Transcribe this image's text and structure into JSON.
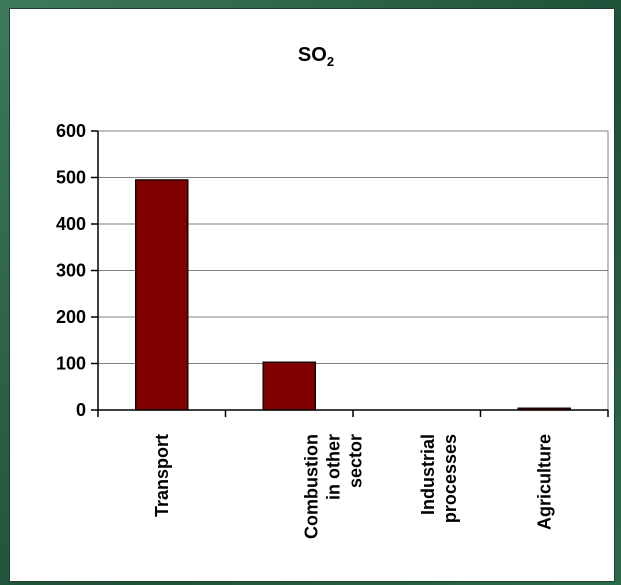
{
  "chart_data": {
    "type": "bar",
    "title": "SO",
    "title_subscript": "2",
    "categories": [
      [
        "Transport"
      ],
      [
        "Combustion",
        "in other",
        "sector"
      ],
      [
        "Industrial",
        "processes"
      ],
      [
        "Agriculture"
      ]
    ],
    "values": [
      495,
      103,
      0,
      4
    ],
    "ylim": [
      0,
      600
    ],
    "yticks": [
      0,
      100,
      200,
      300,
      400,
      500,
      600
    ],
    "grid": true,
    "legend": "none",
    "colors": {
      "bar": "#800000",
      "bar_edge": "#000000",
      "grid": "#808080",
      "axis": "#000000"
    }
  }
}
